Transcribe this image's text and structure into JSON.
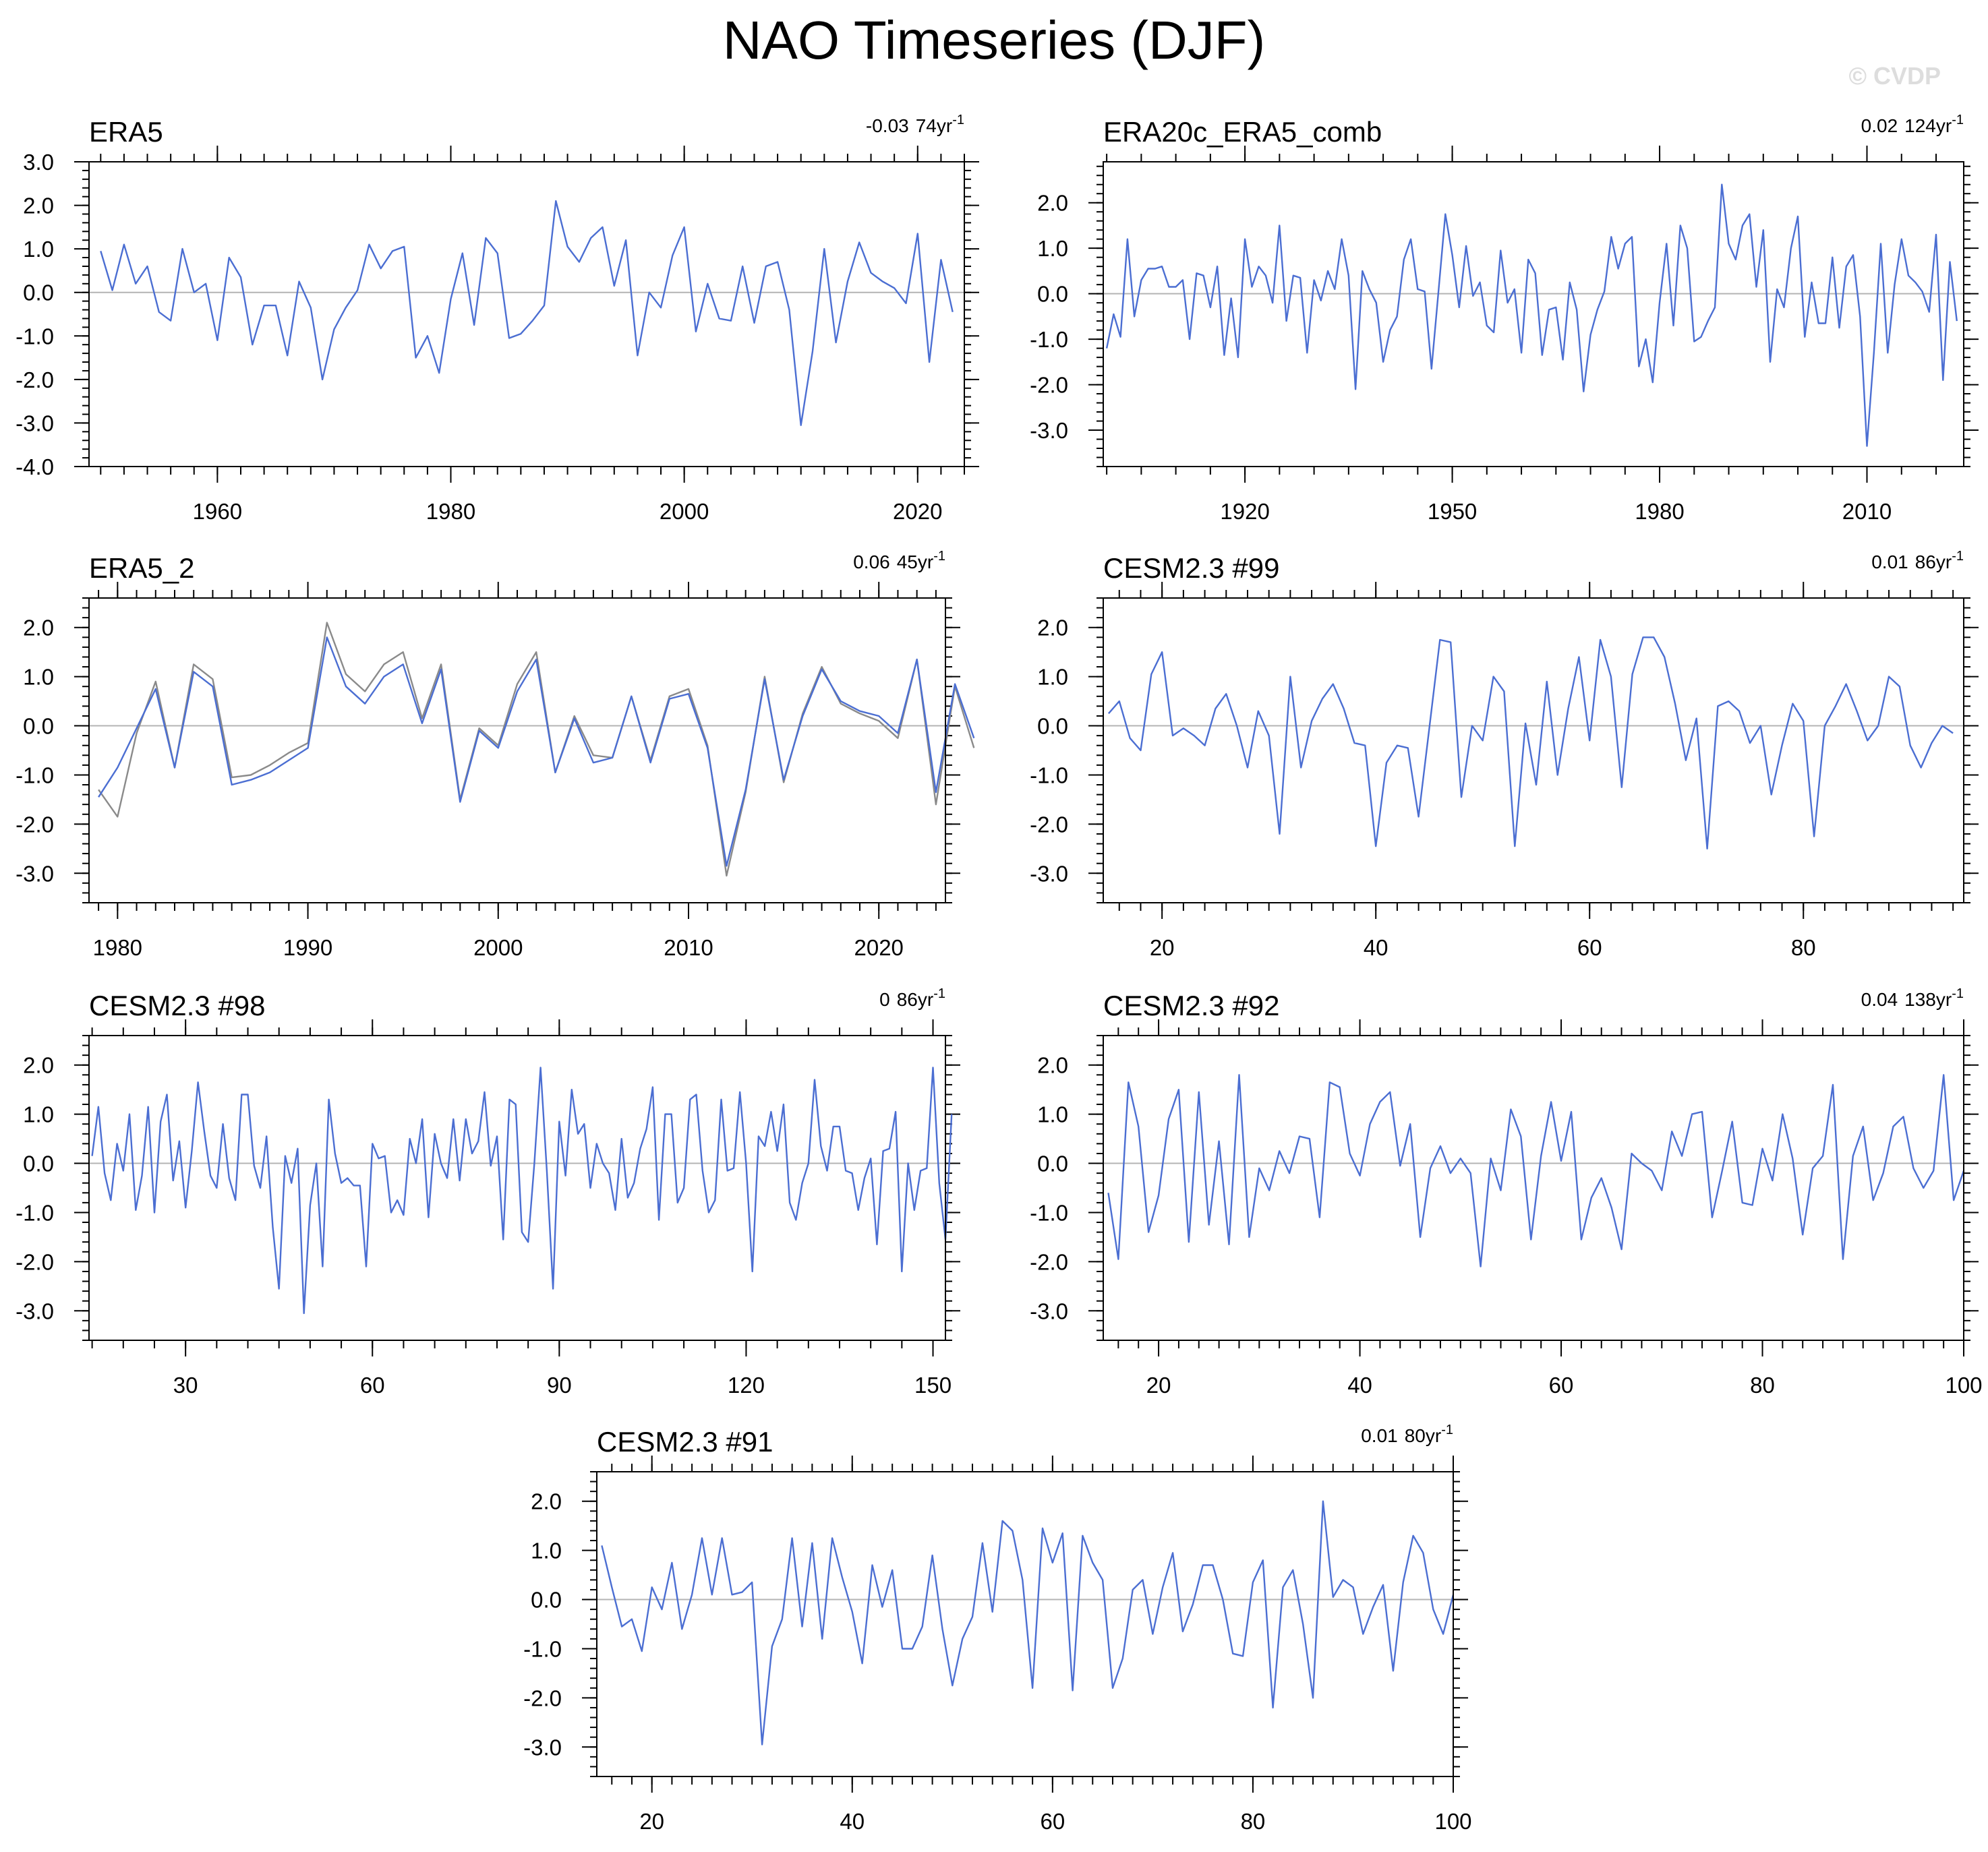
{
  "figure": {
    "title": "NAO Timeseries (DJF)",
    "watermark": "© CVDP"
  },
  "colors": {
    "primary_series": "#4b6ed2",
    "reference_series": "#8a8a8a",
    "zero_line": "#b4b4b4"
  },
  "chart_data": [
    {
      "type": "line",
      "title": "ERA5",
      "trend_value": "-0.03",
      "trend_period": "74yr",
      "trend_superscript": "-1",
      "xlim": [
        1949,
        2024
      ],
      "ylim": [
        -4,
        3
      ],
      "xticks": [
        1960,
        1980,
        2000,
        2020
      ],
      "yticks": [
        3,
        2,
        1,
        0,
        -1,
        -2,
        -3,
        -4
      ],
      "series": [
        {
          "x_start": 1950,
          "x_step": 1,
          "values": [
            0.95,
            0.05,
            1.1,
            0.2,
            0.6,
            -0.45,
            -0.65,
            1.0,
            0.0,
            0.2,
            -1.1,
            0.8,
            0.35,
            -1.2,
            -0.3,
            -0.3,
            -1.45,
            0.25,
            -0.35,
            -2.0,
            -0.85,
            -0.35,
            0.05,
            1.1,
            0.55,
            0.95,
            1.05,
            -1.5,
            -1.0,
            -1.85,
            -0.15,
            0.9,
            -0.75,
            1.25,
            0.9,
            -1.05,
            -0.95,
            -0.65,
            -0.3,
            2.1,
            1.05,
            0.7,
            1.25,
            1.5,
            0.15,
            1.2,
            -1.45,
            0.0,
            -0.35,
            0.85,
            1.5,
            -0.9,
            0.2,
            -0.6,
            -0.65,
            0.6,
            -0.7,
            0.6,
            0.7,
            -0.4,
            -3.05,
            -1.35,
            1.0,
            -1.15,
            0.25,
            1.15,
            0.45,
            0.25,
            0.1,
            -0.25,
            1.35,
            -1.6,
            0.75,
            -0.45
          ]
        }
      ]
    },
    {
      "type": "line",
      "title": "ERA20c_ERA5_comb",
      "trend_value": "0.02",
      "trend_period": "124yr",
      "trend_superscript": "-1",
      "xlim": [
        1899.5,
        2024
      ],
      "ylim": [
        -3.8,
        2.9
      ],
      "xticks": [
        1920,
        1950,
        1980,
        2010
      ],
      "yticks": [
        2,
        1,
        0,
        -1,
        -2,
        -3
      ],
      "series": [
        {
          "x_start": 1900,
          "x_step": 1,
          "values": [
            -1.2,
            -0.45,
            -0.95,
            1.2,
            -0.5,
            0.3,
            0.55,
            0.55,
            0.6,
            0.15,
            0.15,
            0.3,
            -1.0,
            0.45,
            0.4,
            -0.3,
            0.6,
            -1.35,
            -0.1,
            -1.4,
            1.2,
            0.15,
            0.6,
            0.4,
            -0.2,
            1.5,
            -0.6,
            0.4,
            0.35,
            -1.3,
            0.3,
            -0.15,
            0.5,
            0.1,
            1.2,
            0.4,
            -2.1,
            0.5,
            0.1,
            -0.2,
            -1.5,
            -0.8,
            -0.5,
            0.75,
            1.2,
            0.1,
            0.05,
            -1.65,
            0.05,
            1.75,
            0.85,
            -0.3,
            1.05,
            -0.05,
            0.25,
            -0.7,
            -0.85,
            0.95,
            -0.2,
            0.1,
            -1.3,
            0.75,
            0.45,
            -1.35,
            -0.35,
            -0.3,
            -1.45,
            0.25,
            -0.35,
            -2.15,
            -0.9,
            -0.35,
            0.05,
            1.25,
            0.55,
            1.1,
            1.25,
            -1.6,
            -1.0,
            -1.95,
            -0.2,
            1.1,
            -0.7,
            1.5,
            1.0,
            -1.05,
            -0.95,
            -0.6,
            -0.3,
            2.4,
            1.1,
            0.75,
            1.5,
            1.75,
            0.15,
            1.4,
            -1.5,
            0.1,
            -0.3,
            1.0,
            1.7,
            -0.95,
            0.25,
            -0.65,
            -0.65,
            0.8,
            -0.75,
            0.6,
            0.85,
            -0.5,
            -3.35,
            -1.3,
            1.1,
            -1.3,
            0.2,
            1.2,
            0.4,
            0.25,
            0.05,
            -0.4,
            1.3,
            -1.9,
            0.7,
            -0.6
          ]
        }
      ]
    },
    {
      "type": "line",
      "title": "ERA5_2",
      "trend_value": "0.06",
      "trend_period": "45yr",
      "trend_superscript": "-1",
      "xlim": [
        1978.5,
        2023.5
      ],
      "ylim": [
        -3.6,
        2.6
      ],
      "xticks": [
        1980,
        1990,
        2000,
        2010,
        2020
      ],
      "yticks": [
        2,
        1,
        0,
        -1,
        -2,
        -3
      ],
      "series": [
        {
          "x_start": 1979,
          "x_step": 1,
          "values": [
            -1.45,
            -0.85,
            -0.05,
            0.75,
            -0.85,
            1.1,
            0.8,
            -1.2,
            -1.1,
            -0.95,
            -0.7,
            -0.45,
            1.8,
            0.8,
            0.45,
            1.0,
            1.25,
            0.05,
            1.15,
            -1.55,
            -0.1,
            -0.45,
            0.7,
            1.35,
            -0.95,
            0.15,
            -0.75,
            -0.65,
            0.6,
            -0.75,
            0.55,
            0.65,
            -0.45,
            -2.85,
            -1.3,
            0.95,
            -1.1,
            0.2,
            1.15,
            0.5,
            0.3,
            0.2,
            -0.15,
            1.35,
            -1.35,
            0.85,
            -0.25
          ]
        },
        {
          "x_start": 1979,
          "x_step": 1,
          "values": [
            -1.3,
            -1.85,
            -0.15,
            0.9,
            -0.85,
            1.25,
            0.95,
            -1.05,
            -1.0,
            -0.8,
            -0.55,
            -0.35,
            2.1,
            1.05,
            0.7,
            1.25,
            1.5,
            0.15,
            1.25,
            -1.5,
            -0.05,
            -0.4,
            0.85,
            1.5,
            -0.95,
            0.2,
            -0.6,
            -0.65,
            0.6,
            -0.7,
            0.6,
            0.75,
            -0.4,
            -3.05,
            -1.35,
            1.0,
            -1.15,
            0.25,
            1.2,
            0.45,
            0.25,
            0.1,
            -0.25,
            1.35,
            -1.6,
            0.8,
            -0.45
          ]
        }
      ]
    },
    {
      "type": "line",
      "title": "CESM2.3 #99",
      "trend_value": "0.01",
      "trend_period": "86yr",
      "trend_superscript": "-1",
      "xlim": [
        14.5,
        95
      ],
      "ylim": [
        -3.6,
        2.6
      ],
      "xticks": [
        20,
        40,
        60,
        80
      ],
      "yticks": [
        2,
        1,
        0,
        -1,
        -2,
        -3
      ],
      "series": [
        {
          "x_start": 15,
          "x_step": 1,
          "values": [
            0.25,
            0.5,
            -0.25,
            -0.5,
            1.05,
            1.5,
            -0.2,
            -0.05,
            -0.2,
            -0.4,
            0.35,
            0.65,
            0.0,
            -0.85,
            0.3,
            -0.2,
            -2.2,
            1.0,
            -0.85,
            0.1,
            0.55,
            0.85,
            0.35,
            -0.35,
            -0.4,
            -2.45,
            -0.75,
            -0.4,
            -0.45,
            -1.85,
            -0.05,
            1.75,
            1.7,
            -1.45,
            0.0,
            -0.3,
            1.0,
            0.7,
            -2.45,
            0.05,
            -1.2,
            0.9,
            -1.0,
            0.35,
            1.4,
            -0.3,
            1.75,
            1.0,
            -1.25,
            1.05,
            1.8,
            1.8,
            1.4,
            0.45,
            -0.7,
            0.15,
            -2.5,
            0.4,
            0.5,
            0.3,
            -0.35,
            0.0,
            -1.4,
            -0.4,
            0.45,
            0.1,
            -2.25,
            0.0,
            0.4,
            0.85,
            0.3,
            -0.3,
            0.0,
            1.0,
            0.8,
            -0.4,
            -0.85,
            -0.35,
            0.0,
            -0.15
          ]
        }
      ]
    },
    {
      "type": "line",
      "title": "CESM2.3 #98",
      "trend_value": "0",
      "trend_period": "86yr",
      "trend_superscript": "-1",
      "xlim": [
        14.5,
        152
      ],
      "ylim": [
        -3.6,
        2.6
      ],
      "xticks": [
        30,
        60,
        90,
        120,
        150
      ],
      "yticks": [
        2,
        1,
        0,
        -1,
        -2,
        -3
      ],
      "series": [
        {
          "x_start": 15,
          "x_step": 1,
          "values": [
            0.15,
            1.15,
            -0.2,
            -0.75,
            0.4,
            -0.15,
            1.0,
            -0.95,
            -0.25,
            1.15,
            -1.0,
            0.85,
            1.4,
            -0.35,
            0.45,
            -0.9,
            0.25,
            1.65,
            0.65,
            -0.25,
            -0.5,
            0.8,
            -0.3,
            -0.75,
            1.4,
            1.4,
            -0.05,
            -0.5,
            0.55,
            -1.3,
            -2.55,
            0.15,
            -0.4,
            0.3,
            -3.05,
            -0.85,
            0.0,
            -2.1,
            1.3,
            0.2,
            -0.4,
            -0.3,
            -0.45,
            -0.45,
            -2.1,
            0.4,
            0.1,
            0.15,
            -1.0,
            -0.75,
            -1.05,
            0.5,
            0.0,
            0.9,
            -1.1,
            0.6,
            0.0,
            -0.3,
            0.9,
            -0.35,
            0.9,
            0.2,
            0.45,
            1.45,
            -0.05,
            0.55,
            -1.55,
            1.3,
            1.2,
            -1.4,
            -1.6,
            0.0,
            1.95,
            -0.15,
            -2.55,
            0.85,
            -0.25,
            1.5,
            0.6,
            0.8,
            -0.5,
            0.4,
            0.0,
            -0.2,
            -0.95,
            0.5,
            -0.7,
            -0.4,
            0.3,
            0.7,
            1.55,
            -1.15,
            1.0,
            1.0,
            -0.8,
            -0.5,
            1.3,
            1.4,
            -0.15,
            -1.0,
            -0.75,
            1.3,
            -0.15,
            -0.1,
            1.45,
            0.0,
            -2.2,
            0.55,
            0.35,
            1.05,
            0.25,
            1.2,
            -0.8,
            -1.15,
            -0.4,
            0.0,
            1.7,
            0.35,
            -0.15,
            0.75,
            0.75,
            -0.15,
            -0.2,
            -0.95,
            -0.3,
            0.1,
            -1.65,
            0.25,
            0.3,
            1.05,
            -2.2,
            0.0,
            -0.95,
            -0.15,
            -0.1,
            1.95,
            -0.4,
            -1.55,
            1.0
          ]
        }
      ]
    },
    {
      "type": "line",
      "title": "CESM2.3 #92",
      "trend_value": "0.04",
      "trend_period": "138yr",
      "trend_superscript": "-1",
      "xlim": [
        14.5,
        100
      ],
      "ylim": [
        -3.6,
        2.6
      ],
      "xticks": [
        20,
        40,
        60,
        80,
        100
      ],
      "yticks": [
        2,
        1,
        0,
        -1,
        -2,
        -3
      ],
      "series": [
        {
          "x_start": 15,
          "x_step": 1,
          "values": [
            -0.6,
            -1.95,
            1.65,
            0.75,
            -1.4,
            -0.65,
            0.9,
            1.5,
            -1.6,
            1.45,
            -1.25,
            0.45,
            -1.65,
            1.8,
            -1.5,
            -0.1,
            -0.55,
            0.25,
            -0.2,
            0.55,
            0.5,
            -1.1,
            1.65,
            1.55,
            0.2,
            -0.25,
            0.8,
            1.25,
            1.45,
            -0.05,
            0.8,
            -1.5,
            -0.1,
            0.35,
            -0.2,
            0.1,
            -0.2,
            -2.1,
            0.1,
            -0.55,
            1.1,
            0.55,
            -1.55,
            0.15,
            1.25,
            0.05,
            1.05,
            -1.55,
            -0.7,
            -0.3,
            -0.9,
            -1.75,
            0.2,
            0.0,
            -0.15,
            -0.55,
            0.65,
            0.15,
            1.0,
            1.05,
            -1.1,
            -0.15,
            0.85,
            -0.8,
            -0.85,
            0.3,
            -0.35,
            1.0,
            0.1,
            -1.45,
            -0.1,
            0.15,
            1.6,
            -1.95,
            0.15,
            0.75,
            -0.75,
            -0.2,
            0.75,
            0.95,
            -0.1,
            -0.5,
            -0.15,
            1.8,
            -0.75,
            -0.15
          ]
        }
      ]
    },
    {
      "type": "line",
      "title": "CESM2.3 #91",
      "trend_value": "0.01",
      "trend_period": "80yr",
      "trend_superscript": "-1",
      "xlim": [
        14.5,
        100
      ],
      "ylim": [
        -3.6,
        2.6
      ],
      "xticks": [
        20,
        40,
        60,
        80,
        100
      ],
      "yticks": [
        2,
        1,
        0,
        -1,
        -2,
        -3
      ],
      "series": [
        {
          "x_start": 15,
          "x_step": 1,
          "values": [
            1.1,
            0.25,
            -0.55,
            -0.4,
            -1.05,
            0.25,
            -0.2,
            0.75,
            -0.6,
            0.1,
            1.25,
            0.1,
            1.25,
            0.1,
            0.15,
            0.35,
            -2.95,
            -0.95,
            -0.4,
            1.25,
            -0.55,
            1.15,
            -0.8,
            1.25,
            0.45,
            -0.25,
            -1.3,
            0.7,
            -0.15,
            0.6,
            -1.0,
            -1.0,
            -0.55,
            0.9,
            -0.6,
            -1.75,
            -0.8,
            -0.35,
            1.15,
            -0.25,
            1.6,
            1.4,
            0.4,
            -1.8,
            1.45,
            0.75,
            1.35,
            -1.85,
            1.3,
            0.75,
            0.4,
            -1.8,
            -1.2,
            0.2,
            0.4,
            -0.7,
            0.25,
            0.95,
            -0.65,
            -0.1,
            0.7,
            0.7,
            0.0,
            -1.1,
            -1.15,
            0.35,
            0.8,
            -2.2,
            0.25,
            0.6,
            -0.5,
            -2.0,
            2.0,
            0.05,
            0.4,
            0.25,
            -0.7,
            -0.15,
            0.3,
            -1.45,
            0.35,
            1.3,
            0.95,
            -0.2,
            -0.7,
            0.1
          ]
        }
      ]
    }
  ]
}
